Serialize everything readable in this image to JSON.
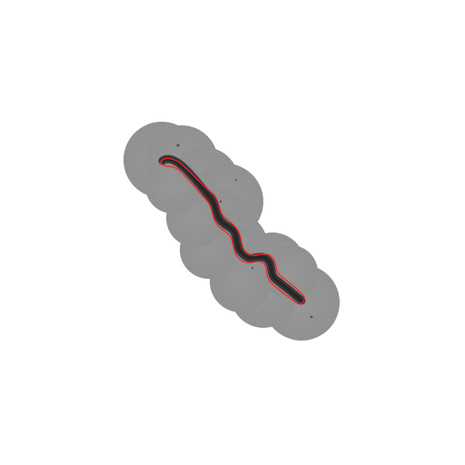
{
  "image": {
    "background_color": "#ffffff",
    "halo_color": "#8f8f8f",
    "halo_edge_color": "#a3a3a3",
    "worm_color": "#3a3a3a",
    "worm_core_color": "#2a2a2a",
    "outline_color": "#ff2020"
  }
}
